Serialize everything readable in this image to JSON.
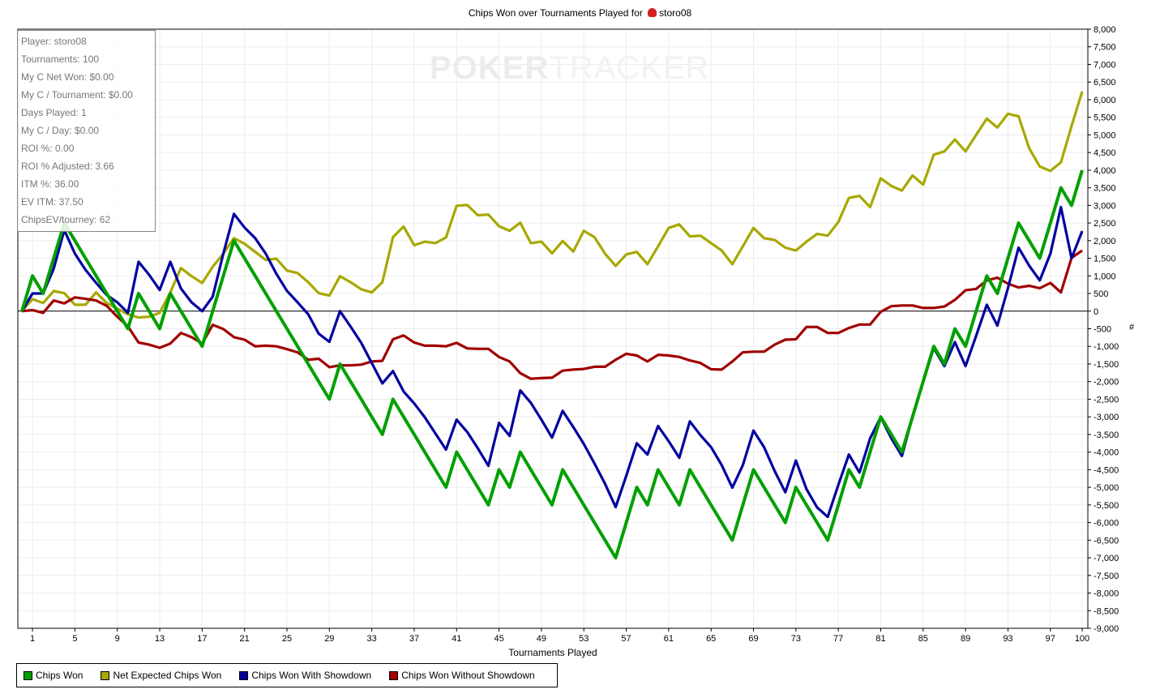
{
  "title_prefix": "Chips Won over Tournaments Played for",
  "player_name": "storo08",
  "watermark": {
    "part1": "POKER",
    "part2": "TRACKER"
  },
  "stats": [
    "Player: storo08",
    "Tournaments: 100",
    "My C Net Won: $0.00",
    "My C / Tournament: $0.00",
    "Days Played: 1",
    "My C / Day: $0.00",
    "ROI %: 0.00",
    "ROI % Adjusted: 3.66",
    "ITM %: 36.00",
    "EV ITM: 37.50",
    "ChipsEV/tourney: 62"
  ],
  "chart_data": {
    "type": "line",
    "title": "Chips Won over Tournaments Played for storo08",
    "xlabel": "Tournaments Played",
    "ylabel": "#",
    "xlim": [
      0,
      100
    ],
    "ylim": [
      -9000,
      8000
    ],
    "x_ticks": [
      1,
      5,
      9,
      13,
      17,
      21,
      25,
      29,
      33,
      37,
      41,
      45,
      49,
      53,
      57,
      61,
      65,
      69,
      73,
      77,
      81,
      85,
      89,
      93,
      97,
      100
    ],
    "y_ticks": [
      8000,
      7500,
      7000,
      6500,
      6000,
      5500,
      5000,
      4500,
      4000,
      3500,
      3000,
      2500,
      2000,
      1500,
      1000,
      500,
      0,
      -500,
      -1000,
      -1500,
      -2000,
      -2500,
      -3000,
      -3500,
      -4000,
      -4500,
      -5000,
      -5500,
      -6000,
      -6500,
      -7000,
      -7500,
      -8000,
      -8500,
      -9000
    ],
    "y_tick_labels": [
      "8,000",
      "7,500",
      "7,000",
      "6,500",
      "6,000",
      "5,500",
      "5,000",
      "4,500",
      "4,000",
      "3,500",
      "3,000",
      "2,500",
      "2,000",
      "1,500",
      "1,000",
      "500",
      "0",
      "-500",
      "-1,000",
      "-1,500",
      "-2,000",
      "-2,500",
      "-3,000",
      "-3,500",
      "-4,000",
      "-4,500",
      "-5,000",
      "-5,500",
      "-6,000",
      "-6,500",
      "-7,000",
      "-7,500",
      "-8,000",
      "-8,500",
      "-9,000"
    ],
    "grid": true,
    "legend_position": "bottom-left",
    "series": [
      {
        "name": "Net Expected Chips Won",
        "color": "#a8a800",
        "values": [
          0,
          340,
          230,
          570,
          510,
          180,
          180,
          530,
          230,
          70,
          -90,
          -180,
          -160,
          -50,
          530,
          1220,
          990,
          800,
          1260,
          1630,
          2070,
          1910,
          1680,
          1450,
          1490,
          1150,
          1080,
          820,
          510,
          440,
          990,
          820,
          620,
          530,
          820,
          2100,
          2400,
          1870,
          1970,
          1930,
          2090,
          2990,
          3010,
          2720,
          2740,
          2410,
          2280,
          2510,
          1930,
          1970,
          1640,
          1990,
          1690,
          2280,
          2100,
          1630,
          1280,
          1610,
          1680,
          1330,
          1840,
          2360,
          2460,
          2120,
          2140,
          1930,
          1720,
          1330,
          1840,
          2360,
          2070,
          2020,
          1800,
          1720,
          1970,
          2190,
          2140,
          2530,
          3210,
          3270,
          2950,
          3770,
          3550,
          3420,
          3850,
          3590,
          4440,
          4530,
          4870,
          4530,
          5000,
          5460,
          5210,
          5600,
          5530,
          4620,
          4100,
          3980,
          4220,
          5250,
          6230
        ]
      },
      {
        "name": "Chips Won Without Showdown",
        "color": "#a00000",
        "values": [
          0,
          30,
          -50,
          300,
          220,
          390,
          350,
          300,
          150,
          -160,
          -430,
          -890,
          -950,
          -1040,
          -920,
          -620,
          -740,
          -920,
          -390,
          -510,
          -740,
          -810,
          -1000,
          -980,
          -1000,
          -1080,
          -1170,
          -1380,
          -1350,
          -1590,
          -1540,
          -1540,
          -1520,
          -1430,
          -1410,
          -800,
          -690,
          -890,
          -980,
          -980,
          -1000,
          -900,
          -1060,
          -1070,
          -1070,
          -1300,
          -1430,
          -1760,
          -1920,
          -1900,
          -1890,
          -1690,
          -1660,
          -1640,
          -1580,
          -1580,
          -1380,
          -1210,
          -1260,
          -1430,
          -1240,
          -1260,
          -1300,
          -1400,
          -1470,
          -1650,
          -1660,
          -1430,
          -1170,
          -1150,
          -1150,
          -950,
          -810,
          -800,
          -450,
          -450,
          -620,
          -620,
          -480,
          -380,
          -380,
          -20,
          140,
          160,
          160,
          90,
          90,
          130,
          320,
          590,
          630,
          870,
          950,
          780,
          670,
          720,
          650,
          800,
          530,
          1510,
          1720
        ]
      },
      {
        "name": "Chips Won With Showdown",
        "color": "#0000a0",
        "values": [
          0,
          500,
          500,
          1200,
          2300,
          1630,
          1170,
          800,
          460,
          250,
          -50,
          1400,
          1030,
          600,
          1400,
          640,
          250,
          0,
          410,
          1630,
          2760,
          2370,
          2070,
          1630,
          1060,
          575,
          250,
          -90,
          -640,
          -870,
          0,
          -440,
          -900,
          -1470,
          -2050,
          -1700,
          -2280,
          -2620,
          -3010,
          -3470,
          -3930,
          -3080,
          -3430,
          -3890,
          -4390,
          -3170,
          -3540,
          -2250,
          -2600,
          -3080,
          -3590,
          -2830,
          -3290,
          -3770,
          -4320,
          -4900,
          -5560,
          -4670,
          -3750,
          -4070,
          -3260,
          -3690,
          -4160,
          -3130,
          -3520,
          -3860,
          -4370,
          -5010,
          -4370,
          -3390,
          -3860,
          -4540,
          -5140,
          -4240,
          -5050,
          -5570,
          -5840,
          -4930,
          -4070,
          -4580,
          -3610,
          -3010,
          -3610,
          -4110,
          -3000,
          -2000,
          -1050,
          -1560,
          -880,
          -1560,
          -700,
          180,
          -410,
          650,
          1800,
          1290,
          870,
          1630,
          2950,
          1500,
          2270
        ]
      },
      {
        "name": "Chips Won",
        "color": "#00a000",
        "values": [
          0,
          1000,
          500,
          1500,
          2500,
          2000,
          1500,
          1000,
          500,
          0,
          -500,
          500,
          0,
          -500,
          500,
          0,
          -500,
          -1000,
          0,
          1000,
          2000,
          1500,
          1000,
          500,
          0,
          -500,
          -1000,
          -1500,
          -2000,
          -2500,
          -1500,
          -2000,
          -2500,
          -3000,
          -3500,
          -2500,
          -3000,
          -3500,
          -4000,
          -4500,
          -5000,
          -4000,
          -4500,
          -5000,
          -5500,
          -4500,
          -5000,
          -4000,
          -4500,
          -5000,
          -5500,
          -4500,
          -5000,
          -5500,
          -6000,
          -6500,
          -7000,
          -6000,
          -5000,
          -5500,
          -4500,
          -5000,
          -5500,
          -4500,
          -5000,
          -5500,
          -6000,
          -6500,
          -5500,
          -4500,
          -5000,
          -5500,
          -6000,
          -5000,
          -5500,
          -6000,
          -6500,
          -5500,
          -4500,
          -5000,
          -4000,
          -3000,
          -3500,
          -4000,
          -3000,
          -2000,
          -1000,
          -1500,
          -500,
          -1000,
          0,
          1000,
          500,
          1500,
          2500,
          2000,
          1500,
          2500,
          3500,
          3000,
          4000
        ]
      }
    ],
    "legend": [
      {
        "label": "Chips Won",
        "color": "#00a000"
      },
      {
        "label": "Net Expected Chips Won",
        "color": "#a8a800"
      },
      {
        "label": "Chips Won With Showdown",
        "color": "#0000a0"
      },
      {
        "label": "Chips Won Without Showdown",
        "color": "#a00000"
      }
    ]
  }
}
